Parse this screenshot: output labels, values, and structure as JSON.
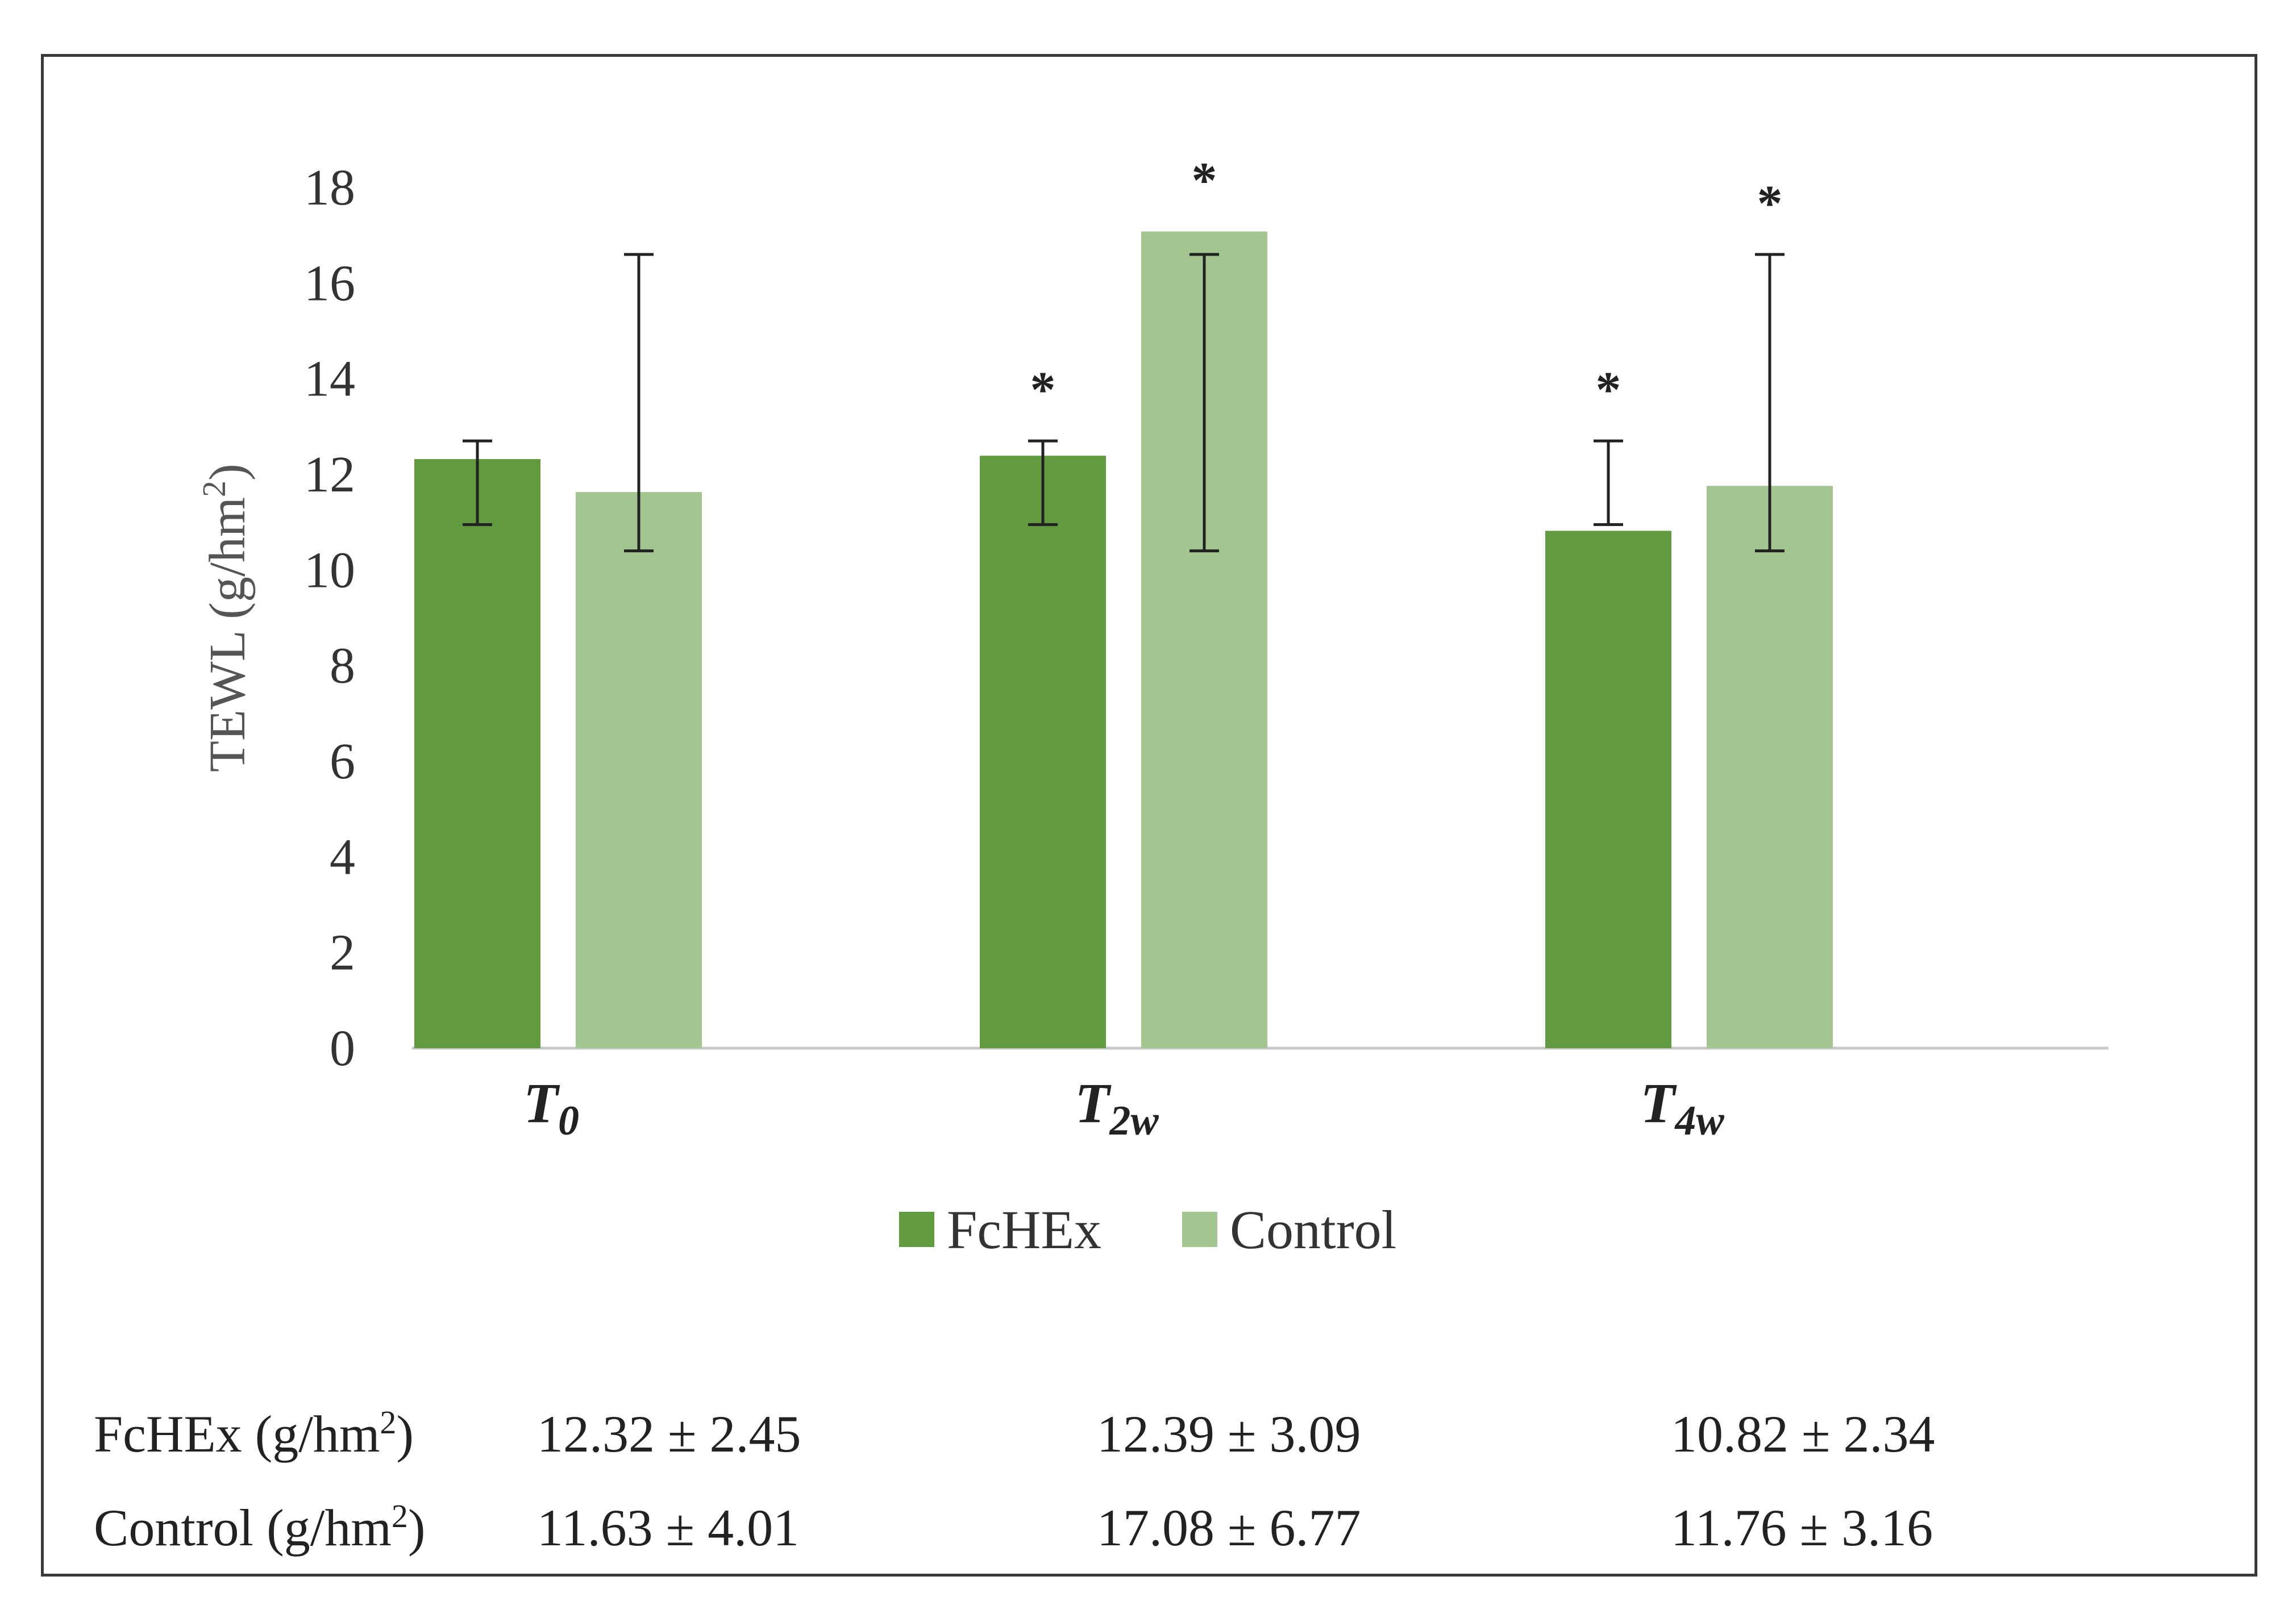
{
  "chart_data": {
    "type": "bar",
    "title": "",
    "xlabel": "",
    "ylabel": "TEWL (g/hm²)",
    "ylabel_base": "TEWL (g/hm",
    "ylabel_sup": "2",
    "ylabel_end": ")",
    "ylim": [
      0,
      18
    ],
    "yticks": [
      0,
      2,
      4,
      6,
      8,
      10,
      12,
      14,
      16,
      18
    ],
    "grid": false,
    "categories": [
      {
        "main": "T",
        "sub": "0"
      },
      {
        "main": "T",
        "sub": "2w"
      },
      {
        "main": "T",
        "sub": "4w"
      }
    ],
    "series": [
      {
        "name": "FcHEx",
        "color": "#629a40",
        "values": [
          12.32,
          12.39,
          10.82
        ],
        "error_low": [
          10.95,
          10.95,
          10.95
        ],
        "error_high": [
          12.7,
          12.7,
          12.7
        ],
        "significant": [
          false,
          true,
          true
        ]
      },
      {
        "name": "Control",
        "color": "#a3c590",
        "values": [
          11.63,
          17.08,
          11.76
        ],
        "error_low": [
          10.4,
          10.4,
          10.4
        ],
        "error_high": [
          16.6,
          16.6,
          16.6
        ],
        "significant": [
          false,
          true,
          true
        ]
      }
    ],
    "significance_marker": "*",
    "legend": {
      "position": "bottom-center",
      "entries": [
        "FcHEx",
        "Control"
      ]
    },
    "summary_table": {
      "rows": [
        {
          "label_base": "FcHEx (g/hm",
          "label_sup": "2",
          "label_end": ")",
          "cells": [
            "12.32 ± 2.45",
            "12.39 ± 3.09",
            "10.82 ± 2.34"
          ]
        },
        {
          "label_base": "Control (g/hm",
          "label_sup": "2",
          "label_end": ")",
          "cells": [
            "11.63 ± 4.01",
            "17.08 ± 6.77",
            "11.76 ± 3.16"
          ]
        }
      ]
    }
  },
  "colors": {
    "axis": "#c8c8c8",
    "error_bar": "#222222",
    "frame": "#3a3a3a"
  }
}
